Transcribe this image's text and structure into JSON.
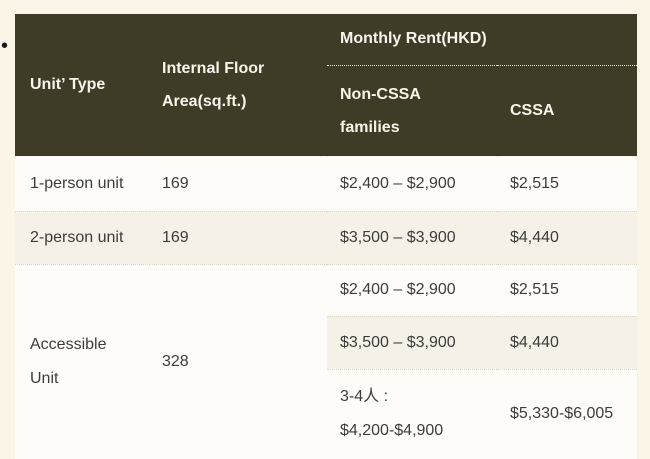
{
  "page": {
    "background": "#fbf5e8",
    "bullet_glyph": "•"
  },
  "colors": {
    "header_bg": "#3e3c26",
    "header_text": "#f8f6ec",
    "row_bg": "#fdfcf8",
    "row_alt_bg": "#f5f1e7",
    "body_text": "#3c3c3c",
    "row_divider": "#dcd6c6"
  },
  "table": {
    "header": {
      "unit_type": "Unit’ Type",
      "floor_area_line1": "Internal Floor",
      "floor_area_line2": "Area(sq.ft.)",
      "monthly_rent": "Monthly Rent(HKD)",
      "non_cssa_line1": "Non-CSSA",
      "non_cssa_line2": "families",
      "cssa": "CSSA"
    },
    "rows": [
      {
        "unit_type": "1-person unit",
        "floor_area": "169",
        "non_cssa": "$2,400 – $2,900",
        "cssa": "$2,515"
      },
      {
        "unit_type": "2-person unit",
        "floor_area": "169",
        "non_cssa": "$3,500 – $3,900",
        "cssa": "$4,440"
      },
      {
        "unit_type_line1": "Accessible",
        "unit_type_line2": "Unit",
        "floor_area": "328",
        "sub_rows": [
          {
            "non_cssa": "$2,400 – $2,900",
            "cssa": "$2,515"
          },
          {
            "non_cssa": "$3,500 – $3,900",
            "cssa": "$4,440"
          },
          {
            "non_cssa_line1": "3-4人 :",
            "non_cssa_line2": "$4,200-$4,900",
            "cssa": "$5,330-$6,005"
          }
        ]
      }
    ]
  }
}
